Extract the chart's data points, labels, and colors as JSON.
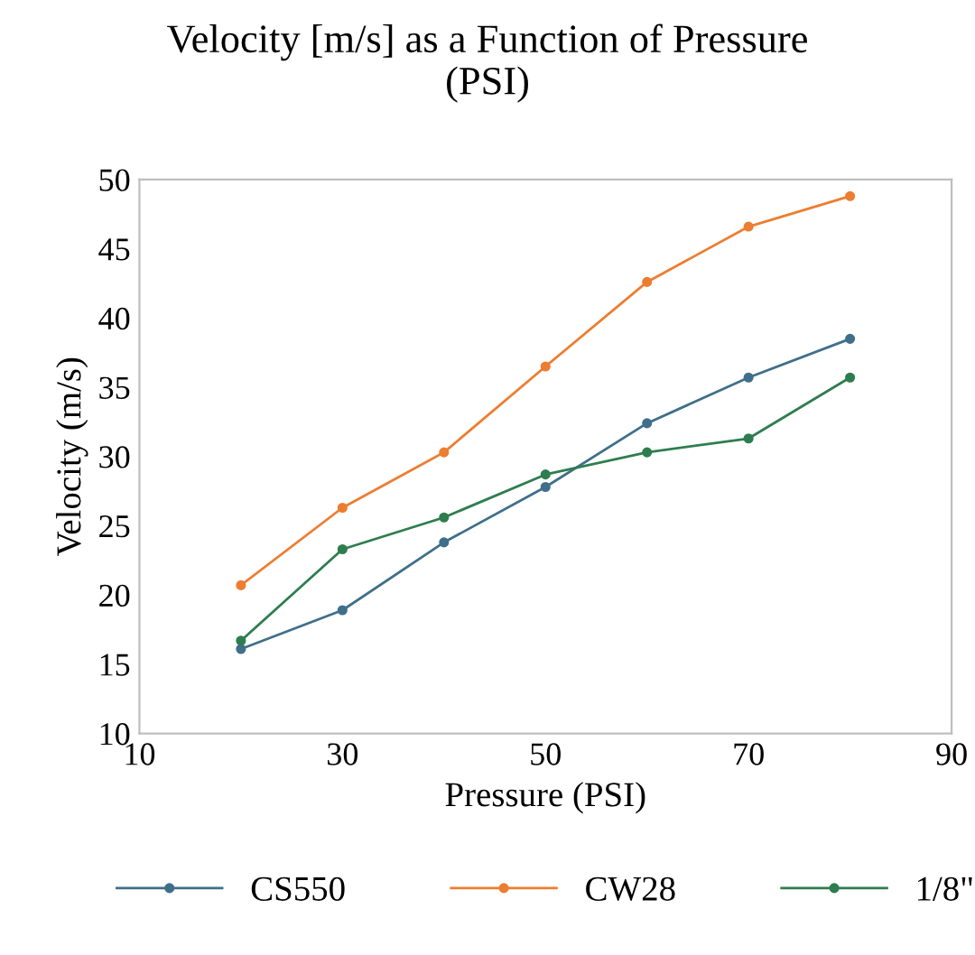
{
  "chart_data": {
    "type": "line",
    "title": "Velocity [m/s] as a Function of Pressure\n(PSI)",
    "xlabel": "Pressure (PSI)",
    "ylabel": "Velocity (m/s)",
    "x": [
      20,
      30,
      40,
      50,
      60,
      70,
      80
    ],
    "series": [
      {
        "name": "CS550",
        "color": "#3f6f8a",
        "values": [
          16.1,
          18.9,
          23.8,
          27.8,
          32.4,
          35.7,
          38.5
        ]
      },
      {
        "name": "CW28",
        "color": "#ed7d31",
        "values": [
          20.7,
          26.3,
          30.3,
          36.5,
          42.6,
          46.6,
          48.8
        ]
      },
      {
        "name": "1/8\"",
        "color": "#2e7d4f",
        "values": [
          16.7,
          23.3,
          25.6,
          28.7,
          30.3,
          31.3,
          35.7
        ]
      }
    ],
    "xlim": [
      10,
      90
    ],
    "xticks": [
      10,
      30,
      50,
      70,
      90
    ],
    "ylim": [
      10,
      50
    ],
    "yticks": [
      10,
      15,
      20,
      25,
      30,
      35,
      40,
      45,
      50
    ],
    "grid": false,
    "legend": "bottom",
    "marker": "circle",
    "line_style": "solid"
  }
}
